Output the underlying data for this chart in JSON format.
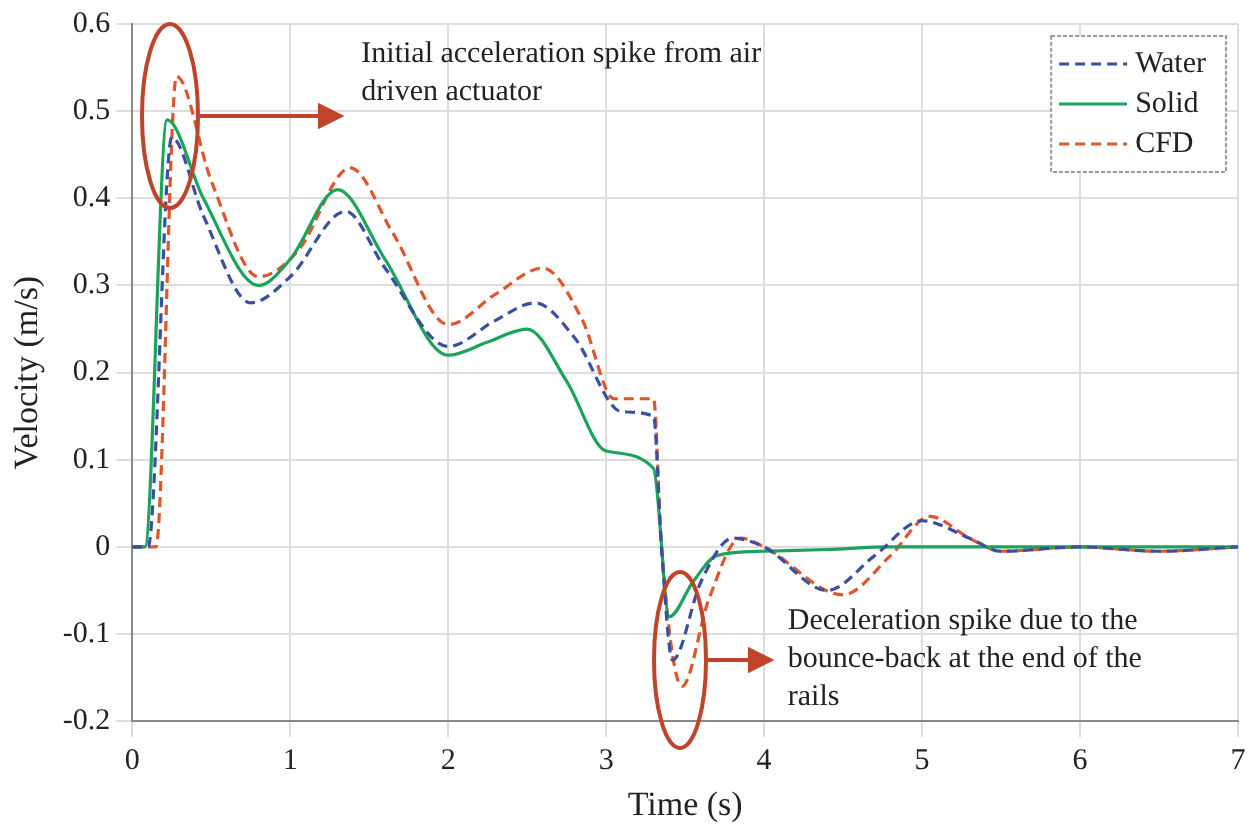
{
  "chart_data": {
    "type": "line",
    "xlabel": "Time (s)",
    "ylabel": "Velocity (m/s)",
    "xlim": [
      0,
      7
    ],
    "xticks": [
      0,
      1,
      2,
      3,
      4,
      5,
      6,
      7
    ],
    "ylim": [
      -0.2,
      0.6
    ],
    "yticks": [
      -0.2,
      -0.1,
      0,
      0.1,
      0.2,
      0.3,
      0.4,
      0.5,
      0.6
    ],
    "grid": true,
    "legend": "top right",
    "marker": "none",
    "annotations": [
      "Initial acceleration spike from air driven actuator",
      "Deceleration spike due to the bounce-back at the end of the rails"
    ],
    "series": [
      {
        "name": "Water",
        "color": "#3a4fa0",
        "line_style": "dashed",
        "x": [
          0,
          0.1,
          0.25,
          0.45,
          0.75,
          1.0,
          1.35,
          1.6,
          2.0,
          2.3,
          2.55,
          2.8,
          3.1,
          3.3,
          3.35,
          3.42,
          3.6,
          3.8,
          4.0,
          4.4,
          4.7,
          5.0,
          5.3,
          5.5,
          6.0,
          6.5,
          7.0
        ],
        "values": [
          0,
          0,
          0.47,
          0.38,
          0.28,
          0.31,
          0.385,
          0.32,
          0.23,
          0.26,
          0.28,
          0.24,
          0.155,
          0.15,
          0.0,
          -0.13,
          -0.04,
          0.01,
          0.0,
          -0.05,
          -0.01,
          0.03,
          0.01,
          -0.005,
          0,
          -0.005,
          0
        ]
      },
      {
        "name": "Solid",
        "color": "#1aa35a",
        "line_style": "solid",
        "x": [
          0,
          0.08,
          0.22,
          0.45,
          0.8,
          1.0,
          1.3,
          1.6,
          2.0,
          2.25,
          2.5,
          2.75,
          3.0,
          3.3,
          3.4,
          3.55,
          3.7,
          4.0,
          4.4,
          4.8,
          5.5,
          6.0,
          7.0
        ],
        "values": [
          0,
          0,
          0.49,
          0.4,
          0.3,
          0.33,
          0.41,
          0.33,
          0.22,
          0.235,
          0.25,
          0.19,
          0.11,
          0.09,
          -0.08,
          -0.04,
          -0.01,
          -0.005,
          -0.003,
          0,
          0,
          0,
          0
        ]
      },
      {
        "name": "CFD",
        "color": "#e0552a",
        "line_style": "dashed",
        "x": [
          0,
          0.15,
          0.28,
          0.5,
          0.8,
          1.05,
          1.38,
          1.65,
          2.0,
          2.3,
          2.6,
          2.85,
          3.05,
          3.3,
          3.35,
          3.48,
          3.65,
          3.85,
          4.0,
          4.5,
          4.8,
          5.05,
          5.3,
          5.5,
          6.0,
          6.5,
          7.0
        ],
        "values": [
          0,
          0,
          0.54,
          0.42,
          0.31,
          0.34,
          0.435,
          0.36,
          0.255,
          0.29,
          0.32,
          0.26,
          0.17,
          0.17,
          0.0,
          -0.16,
          -0.06,
          0.01,
          0.0,
          -0.055,
          -0.01,
          0.035,
          0.01,
          -0.005,
          0,
          -0.005,
          0
        ]
      }
    ]
  }
}
